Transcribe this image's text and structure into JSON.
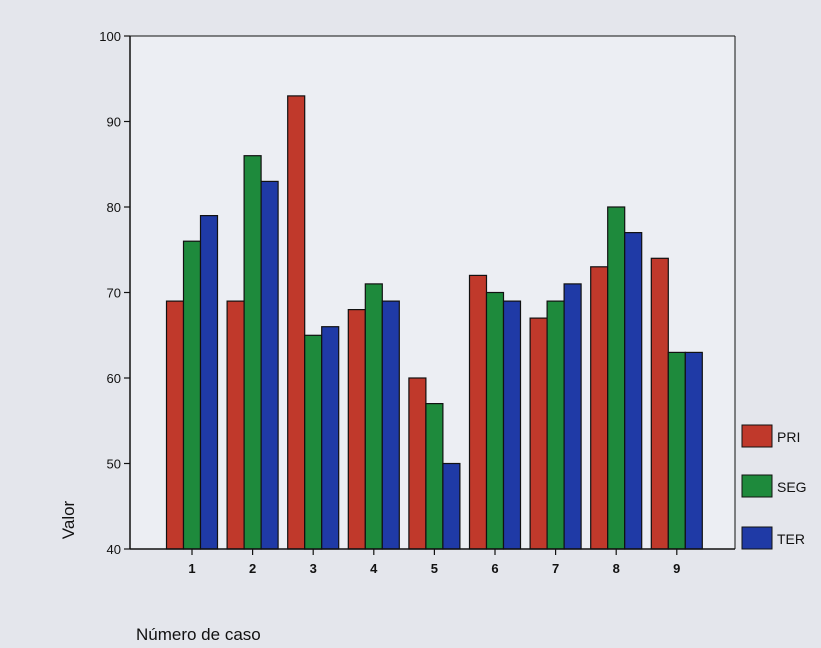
{
  "chart_data": {
    "type": "bar",
    "title": "",
    "xlabel": "Número de caso",
    "ylabel": "Valor",
    "ylim": [
      40,
      100
    ],
    "yticks": [
      40,
      50,
      60,
      70,
      80,
      90,
      100
    ],
    "categories": [
      "1",
      "2",
      "3",
      "4",
      "5",
      "6",
      "7",
      "8",
      "9"
    ],
    "series": [
      {
        "name": "PRI",
        "color": "#c0392b",
        "values": [
          69,
          69,
          93,
          68,
          60,
          72,
          67,
          73,
          74
        ]
      },
      {
        "name": "SEG",
        "color": "#1e8a3c",
        "values": [
          76,
          86,
          65,
          71,
          57,
          70,
          69,
          80,
          63
        ]
      },
      {
        "name": "TER",
        "color": "#1f3aa6",
        "values": [
          79,
          83,
          66,
          69,
          50,
          69,
          71,
          77,
          63
        ]
      }
    ],
    "grid": false,
    "legend_position": "right"
  }
}
